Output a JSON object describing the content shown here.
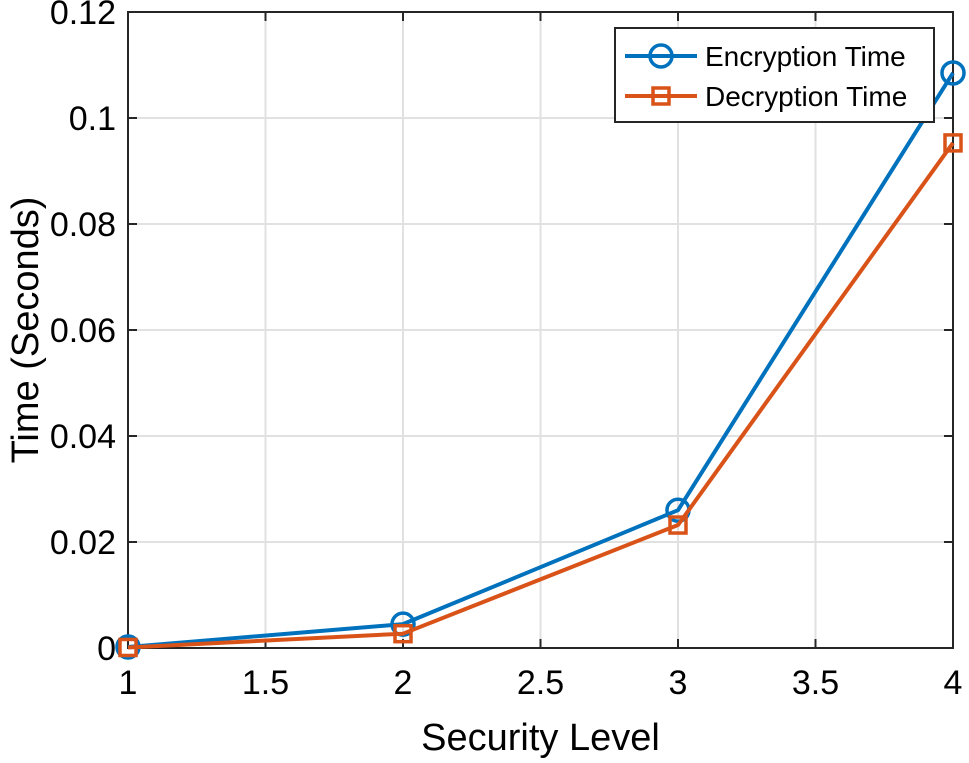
{
  "chart_data": {
    "type": "line",
    "title": "",
    "xlabel": "Security Level",
    "ylabel": "Time (Seconds)",
    "xlim": [
      1,
      4
    ],
    "ylim": [
      0,
      0.12
    ],
    "xticks": [
      "1",
      "1.5",
      "2",
      "2.5",
      "3",
      "3.5",
      "4"
    ],
    "yticks": [
      "0",
      "0.02",
      "0.04",
      "0.06",
      "0.08",
      "0.1",
      "0.12"
    ],
    "grid": true,
    "legend_position": "top-right",
    "x": [
      1,
      2,
      3,
      4
    ],
    "series": [
      {
        "name": "Encryption Time",
        "values": [
          0.0002,
          0.0045,
          0.026,
          0.1085
        ],
        "color": "#0072BD",
        "marker": "circle"
      },
      {
        "name": "Decryption Time",
        "values": [
          0.0001,
          0.0027,
          0.0232,
          0.0953
        ],
        "color": "#D95319",
        "marker": "square"
      }
    ]
  }
}
